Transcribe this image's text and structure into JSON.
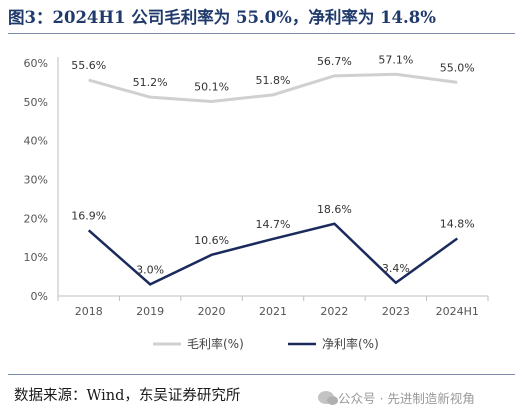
{
  "title": "图3：2024H1 公司毛利率为 55.0%，净利率为 14.8%",
  "source": "数据来源：Wind，东吴证券研究所",
  "watermark": "公众号 · 先进制造新视角",
  "colors": {
    "gross": "#d0d0d0",
    "net": "#1b2a5c",
    "title": "#1f3a6b"
  },
  "chart_data": {
    "type": "line",
    "x": [
      "2018",
      "2019",
      "2020",
      "2021",
      "2022",
      "2023",
      "2024H1"
    ],
    "yticks": [
      "0%",
      "10%",
      "20%",
      "30%",
      "40%",
      "50%",
      "60%"
    ],
    "ylim": [
      0,
      60
    ],
    "grid": false,
    "legend": "bottom-center",
    "series": [
      {
        "name": "毛利率(%)",
        "values": [
          55.6,
          51.2,
          50.1,
          51.8,
          56.7,
          57.1,
          55.0
        ],
        "labels": [
          "55.6%",
          "51.2%",
          "50.1%",
          "51.8%",
          "56.7%",
          "57.1%",
          "55.0%"
        ]
      },
      {
        "name": "净利率(%)",
        "values": [
          16.9,
          3.0,
          10.6,
          14.7,
          18.6,
          3.4,
          14.8
        ],
        "labels": [
          "16.9%",
          "3.0%",
          "10.6%",
          "14.7%",
          "18.6%",
          "3.4%",
          "14.8%"
        ]
      }
    ]
  }
}
